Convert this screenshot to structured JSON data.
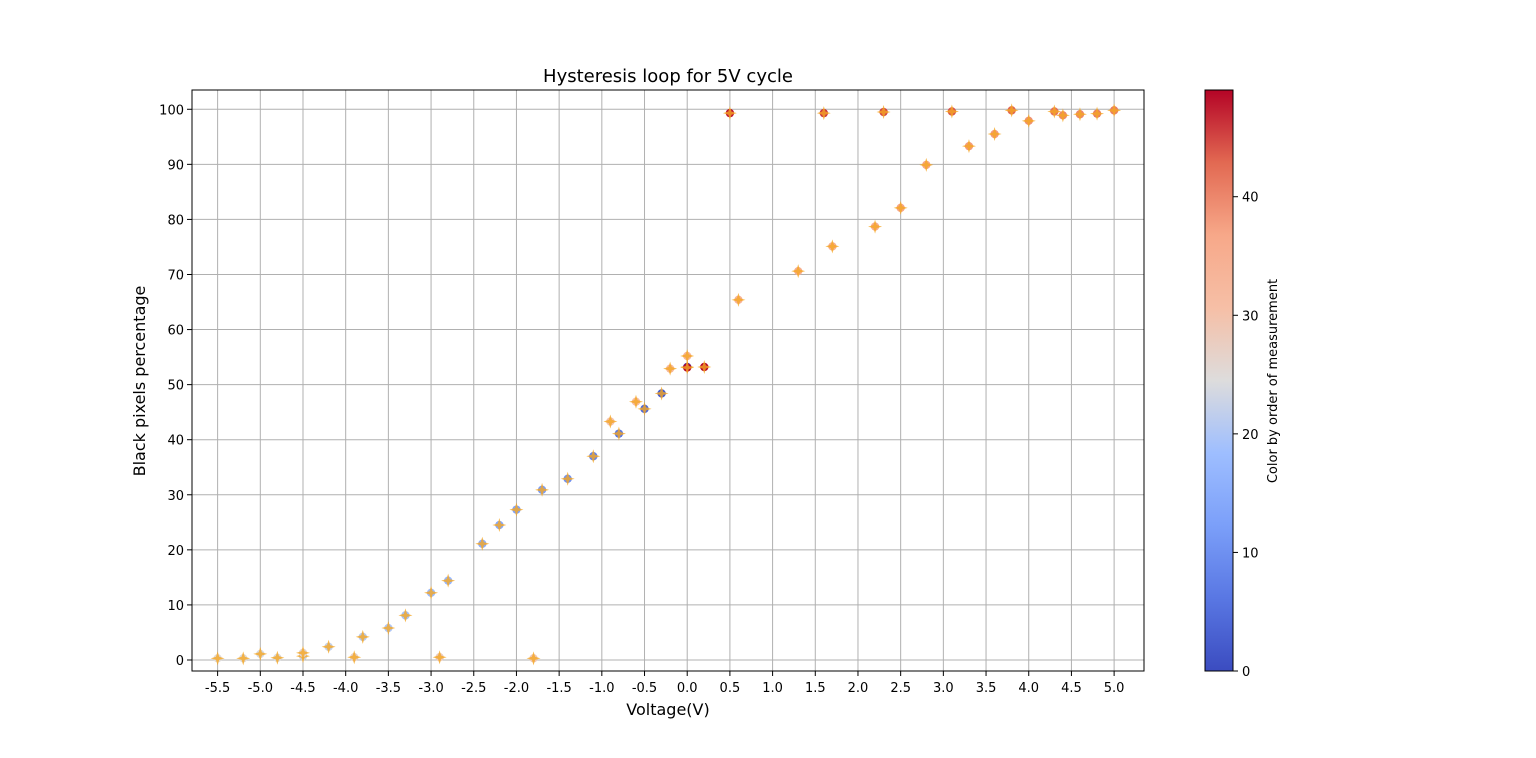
{
  "chart_data": {
    "type": "scatter",
    "title": "Hysteresis loop for 5V cycle",
    "xlabel": "Voltage(V)",
    "ylabel": "Black pixels percentage",
    "xlim": [
      -5.8,
      5.35
    ],
    "ylim": [
      -2,
      103.5
    ],
    "xticks": [
      "-5.5",
      "-5.0",
      "-4.5",
      "-4.0",
      "-3.5",
      "-3.0",
      "-2.5",
      "-2.0",
      "-1.5",
      "-1.0",
      "-0.5",
      "0.0",
      "0.5",
      "1.0",
      "1.5",
      "2.0",
      "2.5",
      "3.0",
      "3.5",
      "4.0",
      "4.5",
      "5.0"
    ],
    "yticks": [
      "0",
      "10",
      "20",
      "30",
      "40",
      "50",
      "60",
      "70",
      "80",
      "90",
      "100"
    ],
    "grid": true,
    "marker_color": "#f5a623",
    "colorbar": {
      "label": "Color by order of measurement",
      "range": [
        0,
        49
      ],
      "ticks": [
        "0",
        "10",
        "20",
        "30",
        "40"
      ],
      "colormap": "coolwarm"
    },
    "points": [
      {
        "x": 0.0,
        "y": 53.2,
        "order": 0
      },
      {
        "x": -0.3,
        "y": 48.4,
        "order": 2
      },
      {
        "x": -0.5,
        "y": 45.6,
        "order": 4
      },
      {
        "x": -0.8,
        "y": 41.1,
        "order": 6
      },
      {
        "x": -1.1,
        "y": 37.0,
        "order": 8
      },
      {
        "x": -1.4,
        "y": 32.9,
        "order": 10
      },
      {
        "x": -1.7,
        "y": 30.9,
        "order": 12
      },
      {
        "x": -2.0,
        "y": 27.3,
        "order": 13
      },
      {
        "x": -2.2,
        "y": 24.5,
        "order": 14
      },
      {
        "x": -2.4,
        "y": 21.1,
        "order": 15
      },
      {
        "x": -2.8,
        "y": 14.4,
        "order": 17
      },
      {
        "x": -3.0,
        "y": 12.2,
        "order": 18
      },
      {
        "x": -3.3,
        "y": 8.1,
        "order": 19
      },
      {
        "x": -3.5,
        "y": 5.8,
        "order": 20
      },
      {
        "x": -3.8,
        "y": 4.2,
        "order": 21
      },
      {
        "x": -4.2,
        "y": 2.4,
        "order": 22
      },
      {
        "x": -4.5,
        "y": 0.7,
        "order": 23
      },
      {
        "x": -4.8,
        "y": 0.4,
        "order": 24
      },
      {
        "x": -5.0,
        "y": 1.1,
        "order": 24
      },
      {
        "x": -5.2,
        "y": 0.3,
        "order": 25
      },
      {
        "x": -5.5,
        "y": 0.3,
        "order": 25
      },
      {
        "x": -4.5,
        "y": 1.3,
        "order": 26
      },
      {
        "x": -3.9,
        "y": 0.5,
        "order": 27
      },
      {
        "x": -2.9,
        "y": 0.5,
        "order": 28
      },
      {
        "x": -1.8,
        "y": 0.3,
        "order": 29
      },
      {
        "x": -0.9,
        "y": 43.3,
        "order": 30
      },
      {
        "x": -0.6,
        "y": 46.9,
        "order": 31
      },
      {
        "x": -0.2,
        "y": 52.9,
        "order": 32
      },
      {
        "x": 0.0,
        "y": 55.2,
        "order": 33
      },
      {
        "x": 0.6,
        "y": 65.4,
        "order": 34
      },
      {
        "x": 1.3,
        "y": 70.6,
        "order": 35
      },
      {
        "x": 1.7,
        "y": 75.1,
        "order": 35
      },
      {
        "x": 2.2,
        "y": 78.7,
        "order": 36
      },
      {
        "x": 2.5,
        "y": 82.1,
        "order": 37
      },
      {
        "x": 2.8,
        "y": 89.9,
        "order": 37
      },
      {
        "x": 3.3,
        "y": 93.3,
        "order": 38
      },
      {
        "x": 3.6,
        "y": 95.5,
        "order": 38
      },
      {
        "x": 4.0,
        "y": 97.9,
        "order": 39
      },
      {
        "x": 4.4,
        "y": 98.9,
        "order": 40
      },
      {
        "x": 4.6,
        "y": 99.1,
        "order": 40
      },
      {
        "x": 4.8,
        "y": 99.2,
        "order": 41
      },
      {
        "x": 5.0,
        "y": 99.8,
        "order": 41
      },
      {
        "x": 4.3,
        "y": 99.6,
        "order": 42
      },
      {
        "x": 3.8,
        "y": 99.8,
        "order": 43
      },
      {
        "x": 3.1,
        "y": 99.6,
        "order": 44
      },
      {
        "x": 2.3,
        "y": 99.5,
        "order": 45
      },
      {
        "x": 1.6,
        "y": 99.3,
        "order": 46
      },
      {
        "x": 0.5,
        "y": 99.3,
        "order": 48
      },
      {
        "x": 0.2,
        "y": 53.2,
        "order": 49
      },
      {
        "x": 0.0,
        "y": 53.1,
        "order": 49
      }
    ]
  }
}
